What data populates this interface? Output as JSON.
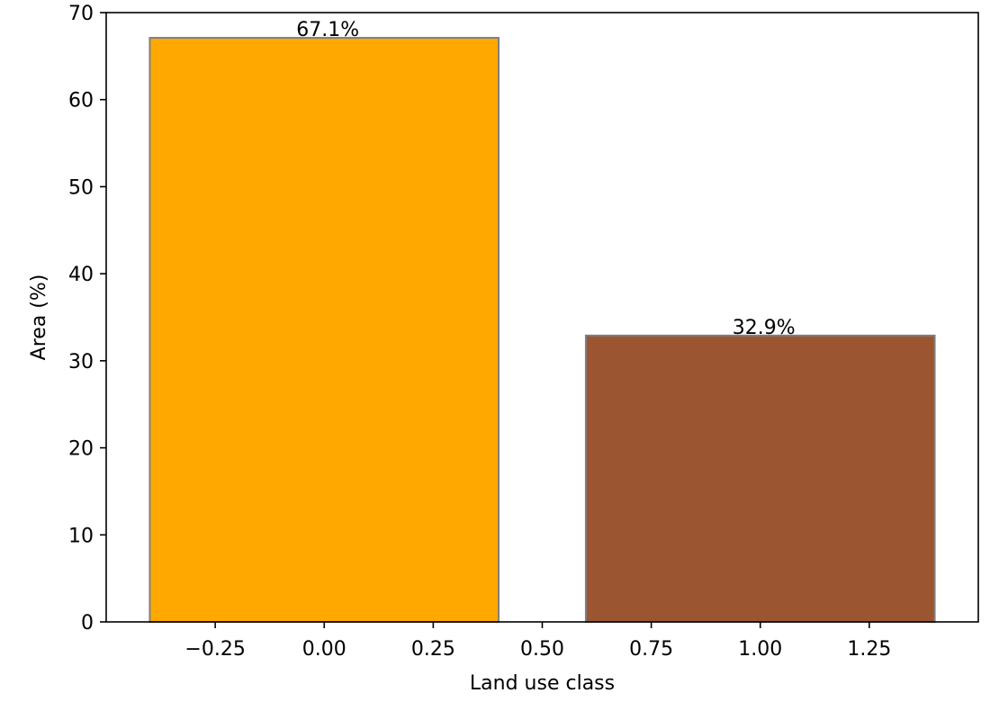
{
  "chart_data": {
    "type": "bar",
    "xlabel": "Land use class",
    "ylabel": "Area (%)",
    "xlim": [
      -0.5,
      1.5
    ],
    "ylim": [
      0,
      70
    ],
    "x_ticks": [
      -0.25,
      0.0,
      0.25,
      0.5,
      0.75,
      1.0,
      1.25
    ],
    "x_tick_labels": [
      "−0.25",
      "0.00",
      "0.25",
      "0.50",
      "0.75",
      "1.00",
      "1.25"
    ],
    "y_ticks": [
      0,
      10,
      20,
      30,
      40,
      50,
      60,
      70
    ],
    "y_tick_labels": [
      "0",
      "10",
      "20",
      "30",
      "40",
      "50",
      "60",
      "70"
    ],
    "bar_width": 0.8,
    "edge_color": "#7f7f7f",
    "bars": [
      {
        "x": 0,
        "value": 67.1,
        "label": "67.1%",
        "color": "#ffa800"
      },
      {
        "x": 1,
        "value": 32.9,
        "label": "32.9%",
        "color": "#9b5531"
      }
    ],
    "grid": false,
    "legend": "none"
  }
}
